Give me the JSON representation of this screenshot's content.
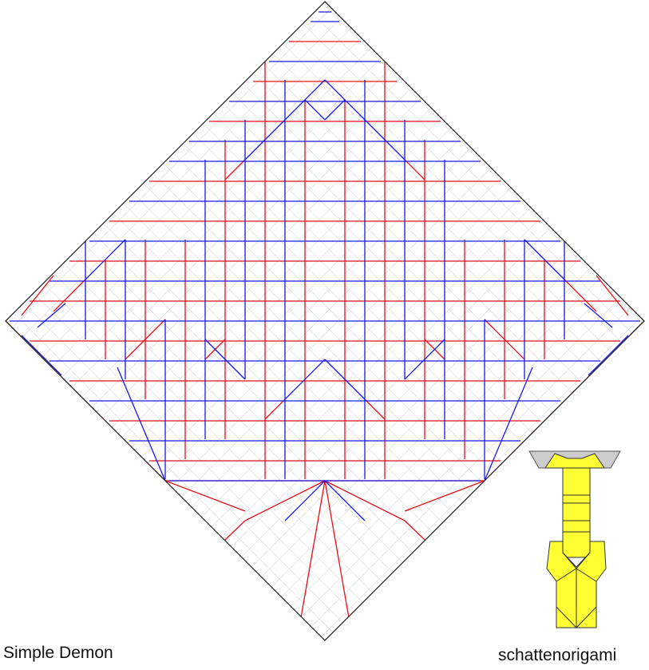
{
  "caption": {
    "title": "Simple Demon",
    "author": "schattenorigami"
  },
  "colors": {
    "mountain": "#e8101a",
    "valley": "#1a1ae8",
    "grid": "#d8d8d8",
    "border": "#222222",
    "base_fill": "#ffff33",
    "base_flap": "#cccccc"
  }
}
